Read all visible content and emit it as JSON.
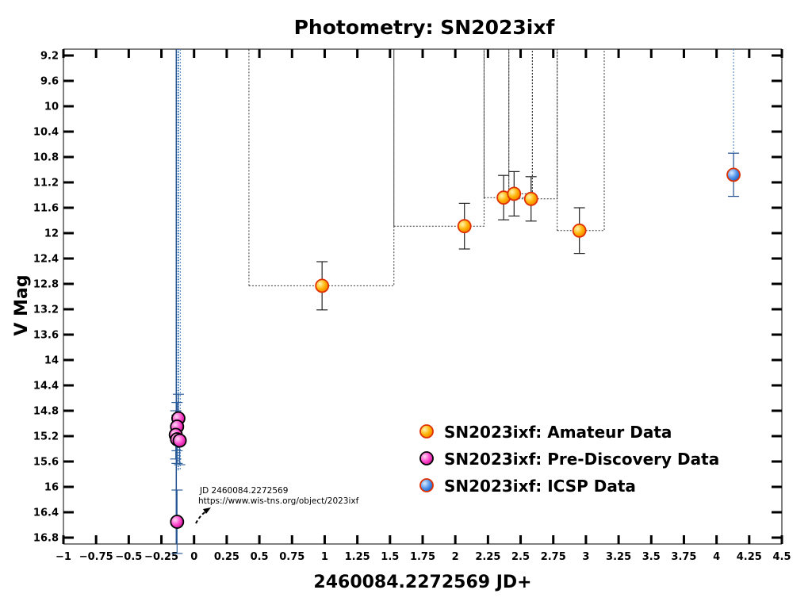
{
  "chart_data": {
    "type": "scatter",
    "title": "Photometry: SN2023ixf",
    "xlabel": "2460084.2272569 JD+",
    "ylabel": "V Mag",
    "xlim": [
      -1,
      4.5
    ],
    "ylim": [
      16.9,
      9.1
    ],
    "y_inverted": true,
    "x_ticks": [
      "-1",
      "-0.75",
      "-0.5",
      "-0.25",
      "0",
      "0.25",
      "0.5",
      "0.75",
      "1",
      "1.25",
      "1.5",
      "1.75",
      "2",
      "2.25",
      "2.5",
      "2.75",
      "3",
      "3.25",
      "3.5",
      "3.75",
      "4",
      "4.25",
      "4.5"
    ],
    "y_ticks": [
      "9.2",
      "9.6",
      "10",
      "10.4",
      "10.8",
      "11.2",
      "11.6",
      "12",
      "12.4",
      "12.8",
      "13.2",
      "13.6",
      "14",
      "14.4",
      "14.8",
      "15.2",
      "15.6",
      "16",
      "16.4",
      "16.8"
    ],
    "legend_position": "bottom-right",
    "series": [
      {
        "name": "SN2023ixf: Amateur Data",
        "color": "#ffb000",
        "edge": "#e03000",
        "points": [
          {
            "x": 0.98,
            "y": 12.83,
            "err": 0.38,
            "xlo": 0.42,
            "xhi": 1.53
          },
          {
            "x": 2.07,
            "y": 11.89,
            "err": 0.36,
            "xlo": 1.53,
            "xhi": 2.22
          },
          {
            "x": 2.37,
            "y": 11.44,
            "err": 0.35,
            "xlo": 2.22,
            "xhi": 2.59
          },
          {
            "x": 2.45,
            "y": 11.38,
            "err": 0.35,
            "xlo": 2.41,
            "xhi": 2.59
          },
          {
            "x": 2.58,
            "y": 11.46,
            "err": 0.35,
            "xlo": 2.41,
            "xhi": 2.78
          },
          {
            "x": 2.95,
            "y": 11.96,
            "err": 0.36,
            "xlo": 2.78,
            "xhi": 3.14
          }
        ]
      },
      {
        "name": "SN2023ixf: Pre-Discovery Data",
        "color": "#ff44cc",
        "edge": "#000000",
        "points": [
          {
            "x": -0.12,
            "y": 14.92,
            "err": 0.38
          },
          {
            "x": -0.13,
            "y": 15.05,
            "err": 0.38
          },
          {
            "x": -0.14,
            "y": 15.18,
            "err": 0.38
          },
          {
            "x": -0.13,
            "y": 15.25,
            "err": 0.38
          },
          {
            "x": -0.11,
            "y": 15.27,
            "err": 0.38
          },
          {
            "x": -0.13,
            "y": 16.55,
            "err": 0.5
          }
        ]
      },
      {
        "name": "SN2023ixf: ICSP Data",
        "color": "#4d8fe8",
        "edge": "#e03000",
        "points": [
          {
            "x": 4.13,
            "y": 11.08,
            "err": 0.34
          }
        ]
      }
    ],
    "annotation": {
      "line1": "JD 2460084.2272569",
      "line2": "https://www.wis-tns.org/object/2023ixf",
      "x": 0.03,
      "y": 16.15
    }
  }
}
